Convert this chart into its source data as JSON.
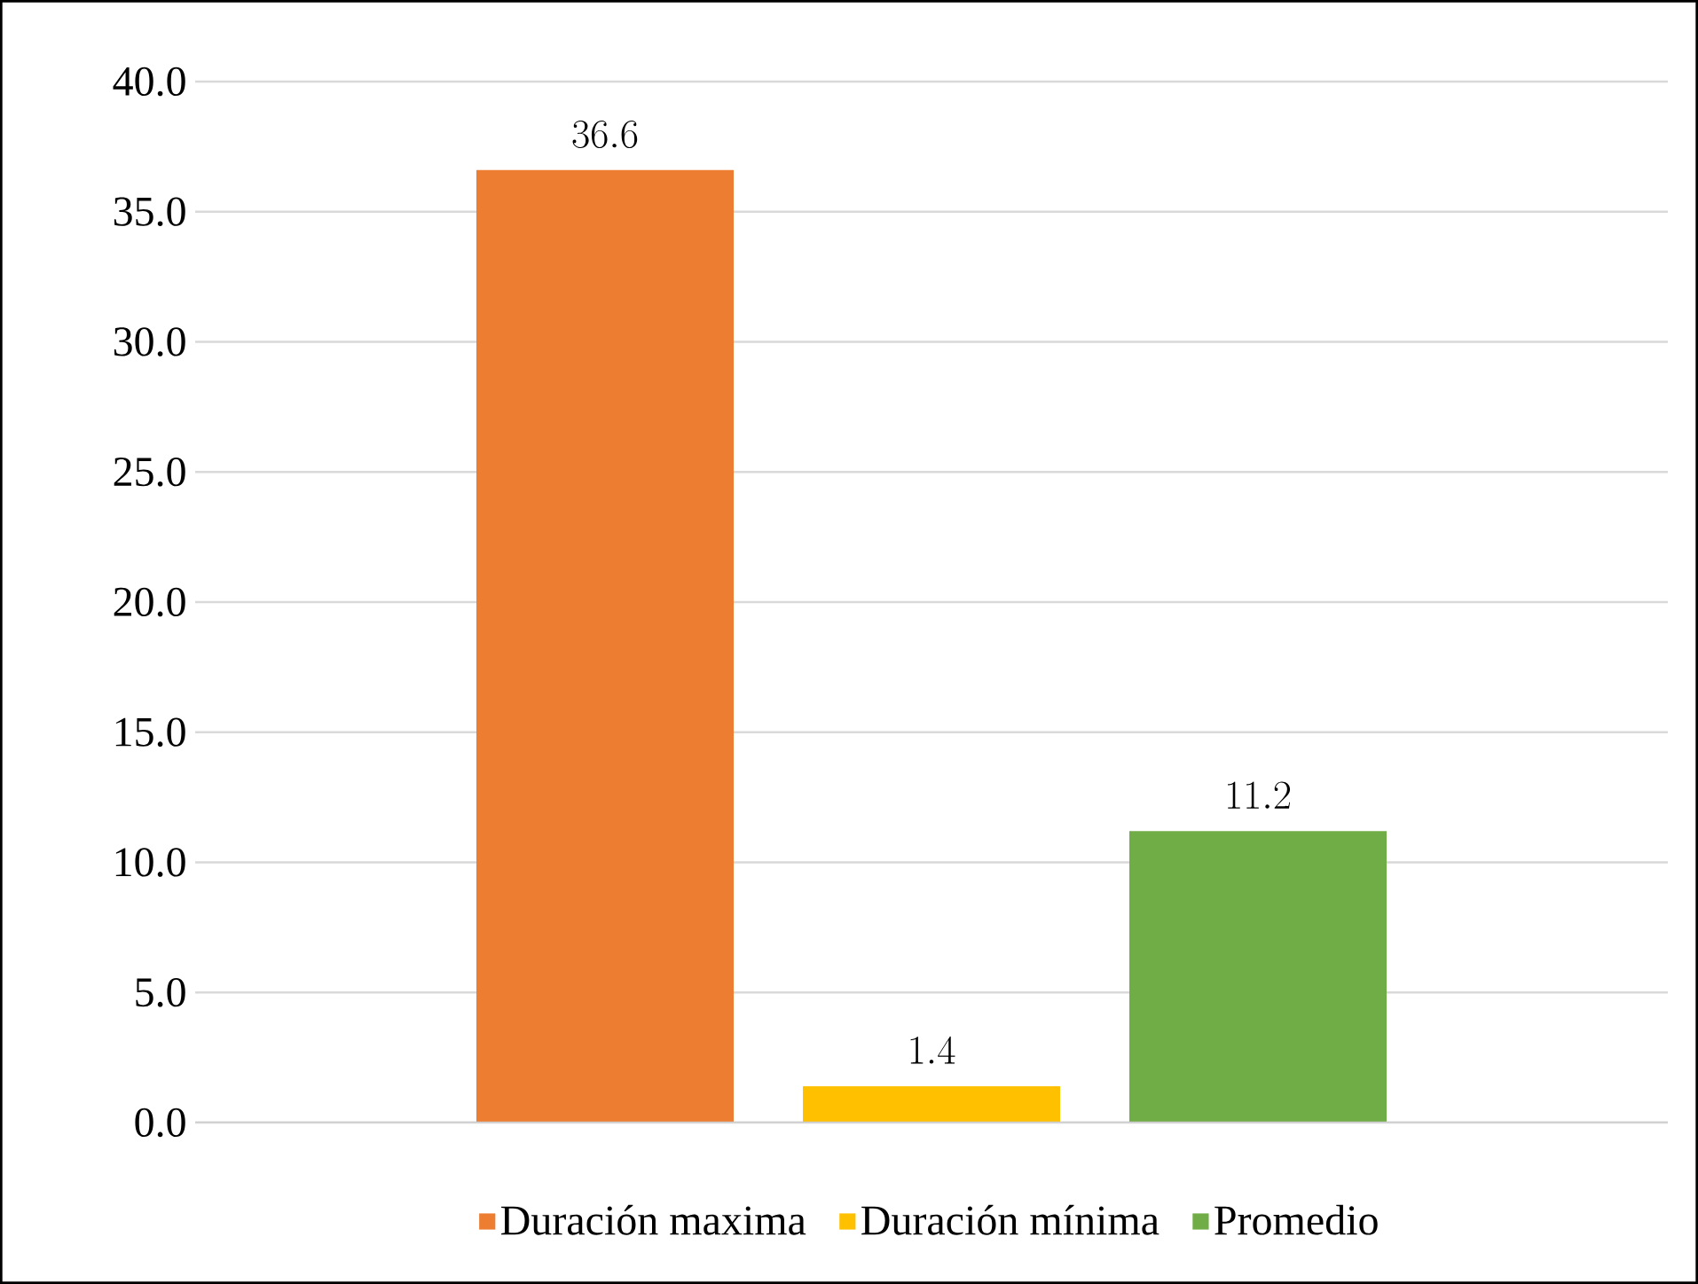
{
  "chart_data": {
    "type": "bar",
    "categories": [
      null
    ],
    "series": [
      {
        "name": "Duración maxima",
        "color": "#ed7d31",
        "values": [
          36.6
        ]
      },
      {
        "name": "Duración mínima",
        "color": "#ffc000",
        "values": [
          1.4
        ]
      },
      {
        "name": "Promedio",
        "color": "#70ad47",
        "values": [
          11.2
        ]
      }
    ],
    "ylim": [
      0,
      40
    ],
    "yticks": [
      {
        "value": 0,
        "label": "0.0"
      },
      {
        "value": 5,
        "label": "5.0"
      },
      {
        "value": 10,
        "label": "10.0"
      },
      {
        "value": 15,
        "label": "15.0"
      },
      {
        "value": 20,
        "label": "20.0"
      },
      {
        "value": 25,
        "label": "25.0"
      },
      {
        "value": 30,
        "label": "30.0"
      },
      {
        "value": 35,
        "label": "35.0"
      },
      {
        "value": 40,
        "label": "40.0"
      }
    ],
    "grid": "y",
    "legend": "bottom",
    "data_labels": true
  }
}
